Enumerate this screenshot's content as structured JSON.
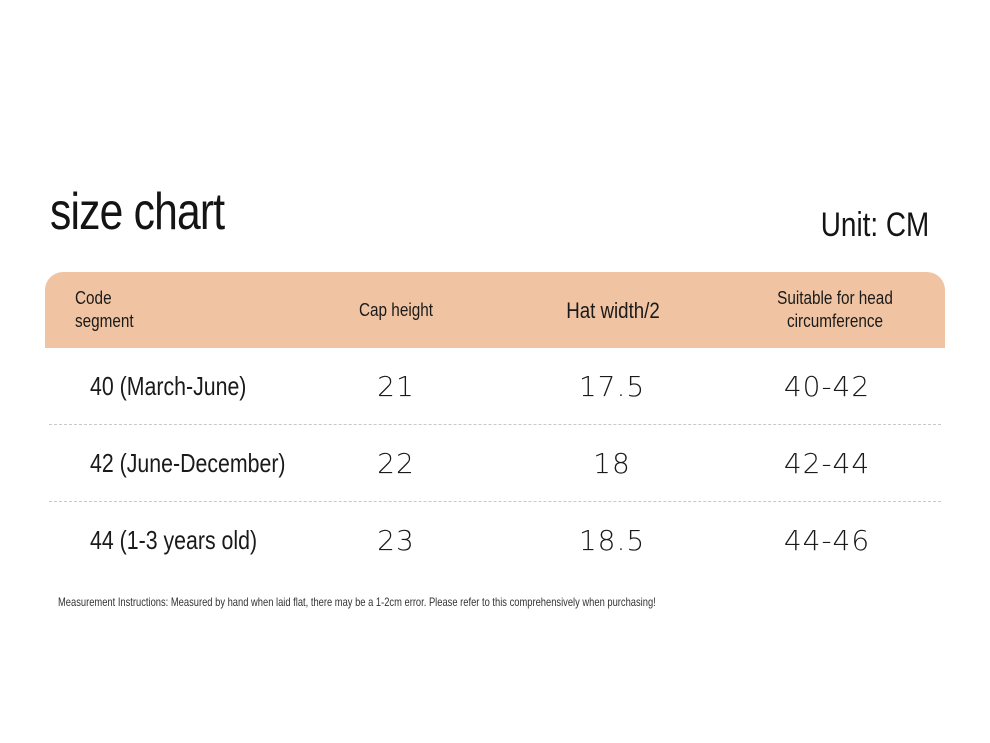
{
  "title": "size chart",
  "unit_label": "Unit: CM",
  "colors": {
    "header_bg": "#f0c4a2",
    "divider": "#c8c8c8",
    "text": "#1a1a1a"
  },
  "table": {
    "headers": [
      "Code\nsegment",
      "Cap height",
      "Hat width/2",
      "Suitable for head\ncircumference"
    ],
    "rows": [
      {
        "code": "40 (March-June)",
        "cap_height": "21",
        "hat_width": "17.5",
        "head_circumference": "40-42"
      },
      {
        "code": "42 (June-December)",
        "cap_height": "22",
        "hat_width": "18",
        "head_circumference": "42-44"
      },
      {
        "code": "44 (1-3 years old)",
        "cap_height": "23",
        "hat_width": "18.5",
        "head_circumference": "44-46"
      }
    ]
  },
  "note": "Measurement Instructions: Measured by hand when laid flat, there may be a 1-2cm error. Please refer to this comprehensively when purchasing!"
}
